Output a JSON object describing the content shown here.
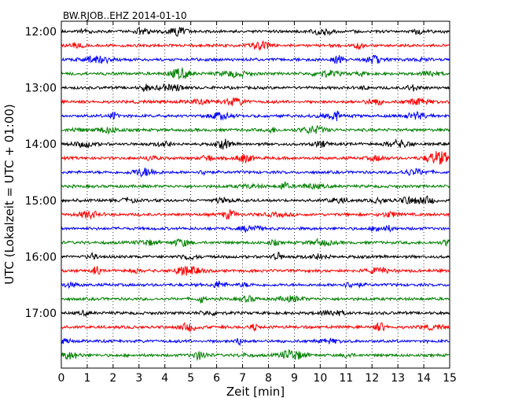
{
  "chart_data": {
    "type": "line",
    "title": "BW.RJOB..EHZ 2014-01-10",
    "xlabel": "Zeit  [min]",
    "ylabel": "UTC (Lokalzeit = UTC + 01:00)",
    "xlim": [
      0,
      15
    ],
    "x_ticks": [
      "0",
      "1",
      "2",
      "3",
      "4",
      "5",
      "6",
      "7",
      "8",
      "9",
      "10",
      "11",
      "12",
      "13",
      "14",
      "15"
    ],
    "y_ticks": [
      "12:00",
      "13:00",
      "14:00",
      "15:00",
      "16:00",
      "17:00"
    ],
    "trace_start_times": [
      "12:00",
      "12:15",
      "12:30",
      "12:45",
      "13:00",
      "13:15",
      "13:30",
      "13:45",
      "14:00",
      "14:15",
      "14:30",
      "14:45",
      "15:00",
      "15:15",
      "15:30",
      "15:45",
      "16:00",
      "16:15",
      "16:30",
      "16:45",
      "17:00",
      "17:15",
      "17:30",
      "17:45"
    ],
    "trace_colors": [
      "#000000",
      "#ff0000",
      "#0000ff",
      "#008000"
    ],
    "grid": "vertical-dotted",
    "legend": "none"
  }
}
